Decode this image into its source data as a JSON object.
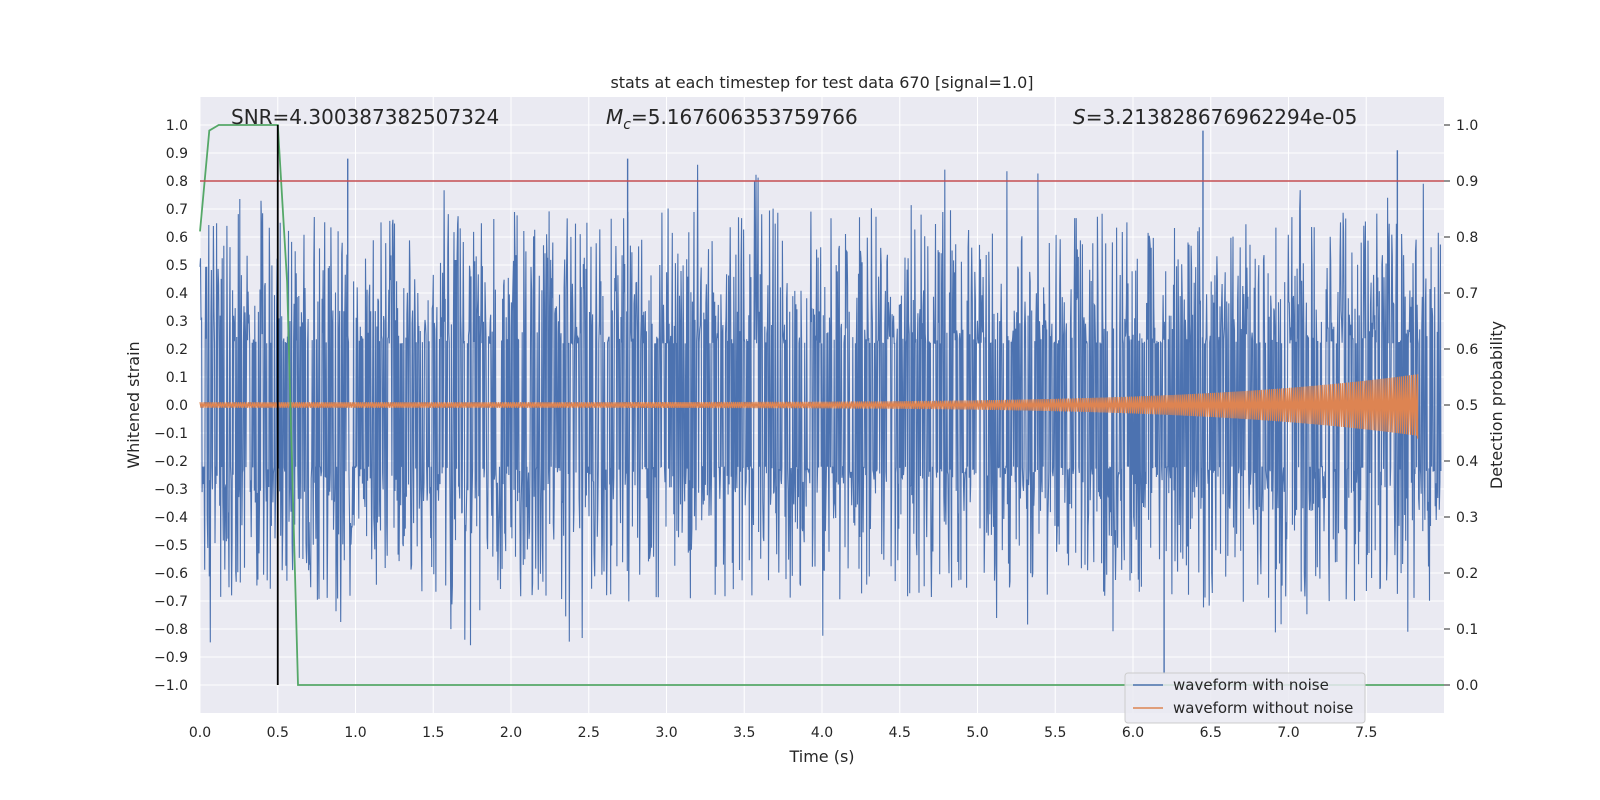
{
  "chart_data": {
    "type": "line",
    "title": "stats at each timestep for test data 670 [signal=1.0]",
    "xlabel": "Time (s)",
    "ylabel": "Whitened strain",
    "y2label": "Detection probability",
    "xlim": [
      0.0,
      8.0
    ],
    "ylim": [
      -1.1,
      1.1
    ],
    "y2lim": [
      -0.05,
      1.05
    ],
    "xticks": [
      "0.0",
      "0.5",
      "1.0",
      "1.5",
      "2.0",
      "2.5",
      "3.0",
      "3.5",
      "4.0",
      "4.5",
      "5.0",
      "5.5",
      "6.0",
      "6.5",
      "7.0",
      "7.5"
    ],
    "yticks": [
      "1.0",
      "0.9",
      "0.8",
      "0.7",
      "0.6",
      "0.5",
      "0.4",
      "0.3",
      "0.2",
      "0.1",
      "0.0",
      "−0.1",
      "−0.2",
      "−0.3",
      "−0.4",
      "−0.5",
      "−0.6",
      "−0.7",
      "−0.8",
      "−0.9",
      "−1.0"
    ],
    "yticks_values": [
      1.0,
      0.9,
      0.8,
      0.7,
      0.6,
      0.5,
      0.4,
      0.3,
      0.2,
      0.1,
      0.0,
      -0.1,
      -0.2,
      -0.3,
      -0.4,
      -0.5,
      -0.6,
      -0.7,
      -0.8,
      -0.9,
      -1.0
    ],
    "y2ticks": [
      "1.0",
      "0.9",
      "0.8",
      "0.7",
      "0.6",
      "0.5",
      "0.4",
      "0.3",
      "0.2",
      "0.1",
      "0.0"
    ],
    "y2ticks_values": [
      1.0,
      0.9,
      0.8,
      0.7,
      0.6,
      0.5,
      0.4,
      0.3,
      0.2,
      0.1,
      0.0
    ],
    "annotations": {
      "snr": "SNR=4.300387382507324",
      "mc_symbol": "M",
      "mc_sub": "c",
      "mc_value": "=5.167606353759766",
      "s_symbol": "S",
      "s_value": "=3.213828676962294e-05"
    },
    "threshold_line": {
      "y2": 0.9,
      "color": "#c44e52"
    },
    "detection_time_line": {
      "x": 0.5,
      "y_range": [
        -1.0,
        1.0
      ],
      "color": "#000000"
    },
    "series": [
      {
        "name": "waveform with noise",
        "color": "#4c72b0",
        "description_values": {
          "time_range": [
            0.0,
            8.0
          ],
          "typical_range": [
            -0.6,
            0.6
          ],
          "peaks": [
            [
              6.45,
              0.98
            ],
            [
              6.2,
              -0.96
            ],
            [
              2.75,
              0.88
            ],
            [
              0.95,
              0.88
            ],
            [
              7.7,
              0.91
            ]
          ]
        }
      },
      {
        "name": "waveform without noise",
        "color": "#dd8452",
        "chirp": {
          "start_amplitude": 0.01,
          "end_amplitude": 0.11,
          "end_time": 7.83,
          "min_value": -0.12,
          "max_value": 0.1
        }
      },
      {
        "name": "detection probability",
        "axis": "right",
        "color": "#55a868",
        "x": [
          0.0,
          0.06,
          0.12,
          0.5,
          0.56,
          0.63,
          0.69,
          8.0
        ],
        "y": [
          0.81,
          0.99,
          1.0,
          1.0,
          0.72,
          0.0,
          0.0,
          0.0
        ]
      }
    ],
    "legend": {
      "position": "lower-right",
      "entries": [
        "waveform with noise",
        "waveform without noise"
      ]
    }
  },
  "colors": {
    "plot_background": "#eaeaf2",
    "grid": "#ffffff",
    "text": "#262626"
  }
}
